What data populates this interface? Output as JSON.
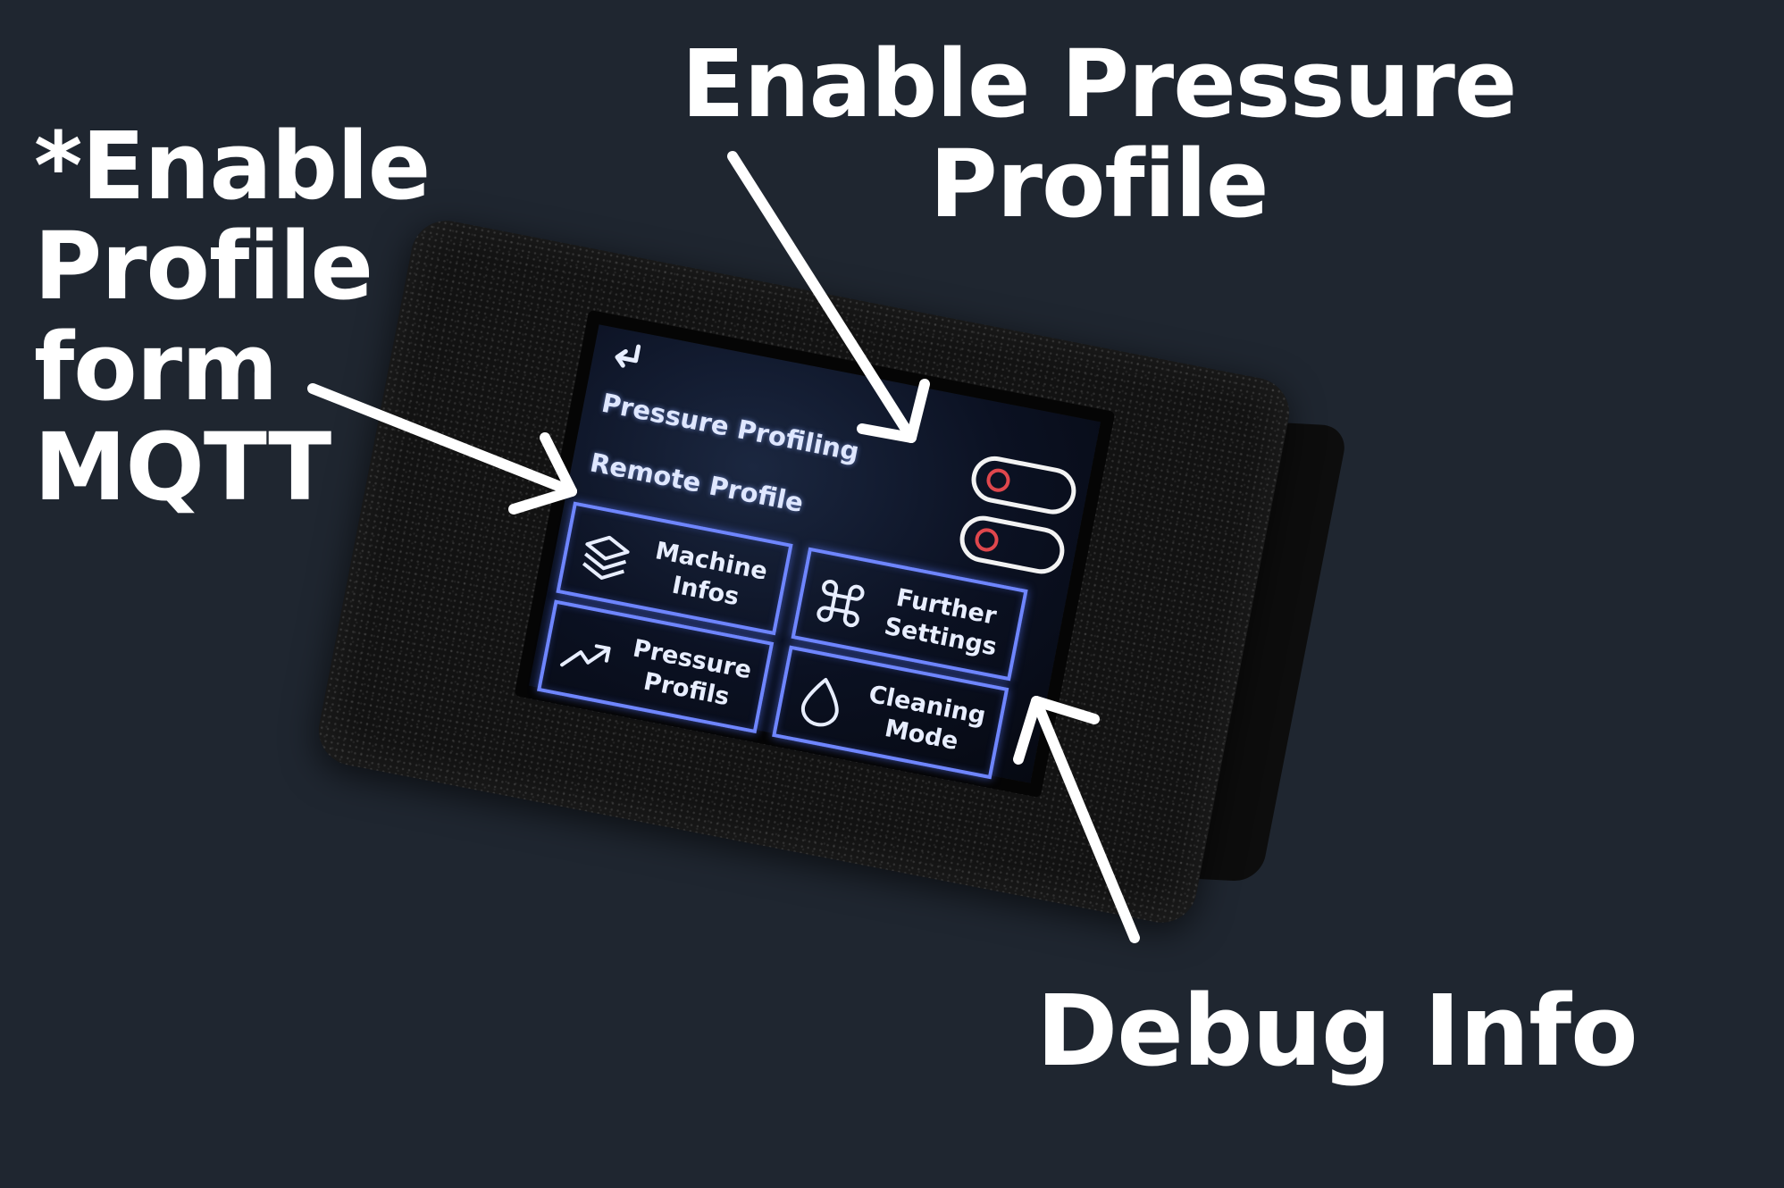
{
  "callouts": {
    "mqtt": [
      "*Enable",
      "Profile",
      "form",
      "MQTT"
    ],
    "pressure": [
      "Enable Pressure",
      "Profile"
    ],
    "debug": "Debug Info"
  },
  "screen": {
    "back_icon": "back-arrow-icon",
    "settings": [
      {
        "label": "Pressure Profiling",
        "enabled": false
      },
      {
        "label": "Remote Profile",
        "enabled": false
      }
    ],
    "tiles": [
      {
        "label_line1": "Machine",
        "label_line2": "Infos",
        "icon": "layers-icon"
      },
      {
        "label_line1": "Further",
        "label_line2": "Settings",
        "icon": "command-icon"
      },
      {
        "label_line1": "Pressure",
        "label_line2": "Profils",
        "icon": "trending-up-icon"
      },
      {
        "label_line1": "Cleaning",
        "label_line2": "Mode",
        "icon": "droplet-icon"
      }
    ]
  },
  "colors": {
    "background": "#1f2630",
    "tile_border": "#6f86ff",
    "toggle_off_knob": "#e0474d",
    "text": "#ffffff"
  }
}
